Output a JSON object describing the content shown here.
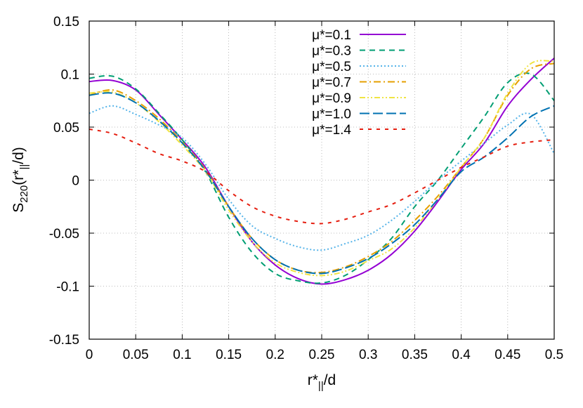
{
  "chart_data": {
    "type": "line",
    "xlabel": "r*||/d",
    "ylabel": "S220(r*||/d)",
    "xlim": [
      0,
      0.5
    ],
    "ylim": [
      -0.15,
      0.15
    ],
    "x_ticks": [
      "0",
      "0.05",
      "0.1",
      "0.15",
      "0.2",
      "0.25",
      "0.3",
      "0.35",
      "0.4",
      "0.45",
      "0.5"
    ],
    "y_ticks": [
      "-0.15",
      "-0.1",
      "-0.05",
      "0",
      "0.05",
      "0.1",
      "0.15"
    ],
    "grid": true,
    "legend_position": "top-right",
    "x": [
      0,
      0.025,
      0.05,
      0.075,
      0.1,
      0.125,
      0.15,
      0.175,
      0.2,
      0.225,
      0.25,
      0.275,
      0.3,
      0.325,
      0.35,
      0.375,
      0.4,
      0.425,
      0.45,
      0.475,
      0.5
    ],
    "series": [
      {
        "name": "μ*=0.1",
        "color": "#9400d3",
        "dash": "solid",
        "values": [
          0.093,
          0.094,
          0.085,
          0.062,
          0.038,
          0.012,
          -0.025,
          -0.058,
          -0.08,
          -0.093,
          -0.098,
          -0.094,
          -0.085,
          -0.07,
          -0.048,
          -0.02,
          0.01,
          0.035,
          0.07,
          0.095,
          0.115
        ]
      },
      {
        "name": "μ*=0.3",
        "color": "#009e73",
        "dash": "8,6",
        "values": [
          0.096,
          0.098,
          0.086,
          0.063,
          0.038,
          0.008,
          -0.035,
          -0.068,
          -0.088,
          -0.095,
          -0.097,
          -0.09,
          -0.075,
          -0.055,
          -0.025,
          0.0,
          0.03,
          0.06,
          0.092,
          0.1,
          0.075
        ]
      },
      {
        "name": "μ*=0.5",
        "color": "#56b4e9",
        "dash": "2,3",
        "values": [
          0.063,
          0.07,
          0.062,
          0.052,
          0.04,
          0.015,
          -0.018,
          -0.043,
          -0.055,
          -0.063,
          -0.066,
          -0.06,
          -0.052,
          -0.038,
          -0.02,
          0.0,
          0.018,
          0.035,
          0.052,
          0.062,
          0.025
        ]
      },
      {
        "name": "μ*=0.7",
        "color": "#e69f00",
        "dash": "10,4,2,4",
        "values": [
          0.08,
          0.085,
          0.075,
          0.058,
          0.036,
          0.01,
          -0.025,
          -0.055,
          -0.075,
          -0.085,
          -0.087,
          -0.082,
          -0.072,
          -0.058,
          -0.038,
          -0.015,
          0.012,
          0.04,
          0.08,
          0.105,
          0.11
        ]
      },
      {
        "name": "μ*=0.9",
        "color": "#f0e442",
        "dash": "8,3,2,3,2,3",
        "values": [
          0.082,
          0.083,
          0.073,
          0.055,
          0.033,
          0.008,
          -0.028,
          -0.058,
          -0.078,
          -0.087,
          -0.09,
          -0.086,
          -0.076,
          -0.065,
          -0.045,
          -0.018,
          0.012,
          0.04,
          0.082,
          0.11,
          0.112
        ]
      },
      {
        "name": "μ*=1.0",
        "color": "#0072b2",
        "dash": "14,5",
        "values": [
          0.08,
          0.082,
          0.073,
          0.056,
          0.035,
          0.009,
          -0.025,
          -0.055,
          -0.075,
          -0.085,
          -0.088,
          -0.083,
          -0.074,
          -0.06,
          -0.042,
          -0.018,
          0.008,
          0.022,
          0.04,
          0.06,
          0.07
        ]
      },
      {
        "name": "μ*=1.4",
        "color": "#e51e10",
        "dash": "5,7",
        "values": [
          0.048,
          0.044,
          0.035,
          0.025,
          0.018,
          0.008,
          -0.01,
          -0.025,
          -0.034,
          -0.039,
          -0.041,
          -0.037,
          -0.03,
          -0.023,
          -0.012,
          0.0,
          0.012,
          0.022,
          0.032,
          0.036,
          0.038
        ]
      }
    ]
  }
}
